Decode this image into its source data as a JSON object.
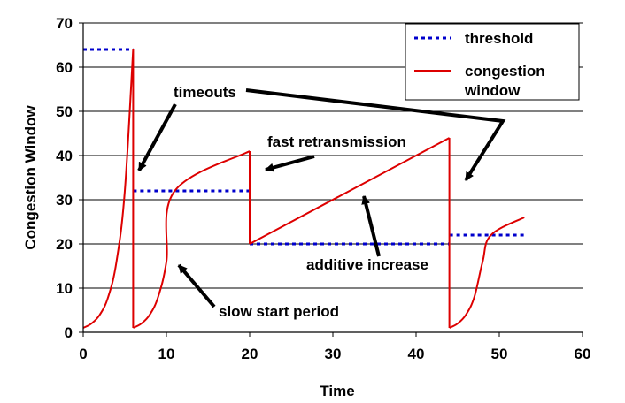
{
  "chart_data": {
    "type": "line",
    "xlabel": "Time",
    "ylabel": "Congestion Window",
    "xlim": [
      0,
      60
    ],
    "ylim": [
      0,
      70
    ],
    "xticks": [
      0,
      10,
      20,
      30,
      40,
      50,
      60
    ],
    "yticks": [
      0,
      10,
      20,
      30,
      40,
      50,
      60,
      70
    ],
    "grid": "horizontal",
    "legend_position": "top-right",
    "colors": {
      "threshold": "#0000cc",
      "congestion": "#dd0000"
    },
    "series": [
      {
        "name": "threshold",
        "style": "dotted",
        "segments": [
          [
            [
              0,
              64
            ],
            [
              6,
              64
            ]
          ],
          [
            [
              6,
              32
            ],
            [
              20,
              32
            ]
          ],
          [
            [
              20,
              20
            ],
            [
              44,
              20
            ]
          ],
          [
            [
              44,
              22
            ],
            [
              53,
              22
            ]
          ]
        ]
      },
      {
        "name": "congestion window",
        "style": "solid",
        "x": [
          0,
          1,
          2,
          3,
          4,
          5,
          6,
          6,
          7,
          8,
          9,
          10,
          11,
          20,
          20,
          44,
          44,
          45,
          46,
          47,
          48,
          49,
          53
        ],
        "y": [
          1,
          2,
          4,
          8,
          16,
          32,
          64,
          1,
          2,
          4,
          8,
          16,
          32,
          41,
          20,
          44,
          1,
          2,
          4,
          8,
          16,
          22,
          26
        ]
      }
    ],
    "annotations": [
      {
        "id": "timeouts",
        "text": "timeouts"
      },
      {
        "id": "fast",
        "text": "fast retransmission"
      },
      {
        "id": "additive",
        "text": "additive increase"
      },
      {
        "id": "slow",
        "text": "slow start period"
      }
    ]
  }
}
